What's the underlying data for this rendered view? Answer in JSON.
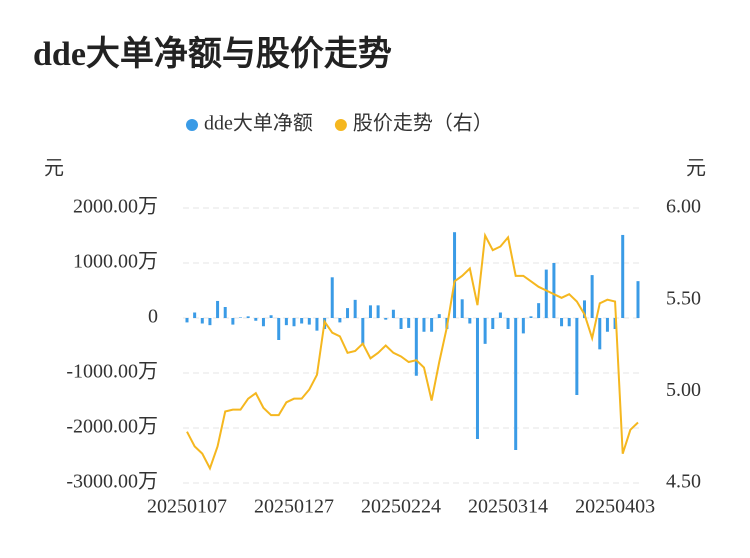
{
  "chart_data": {
    "type": "bar_line",
    "title": "dde大单净额与股价走势",
    "y_label": "元",
    "y2_label": "元",
    "categories": [
      "20250107",
      null,
      null,
      null,
      null,
      null,
      null,
      null,
      null,
      null,
      null,
      null,
      null,
      null,
      "20250127",
      null,
      null,
      null,
      null,
      null,
      null,
      null,
      null,
      null,
      null,
      null,
      null,
      null,
      "20250224",
      null,
      null,
      null,
      null,
      null,
      null,
      null,
      null,
      null,
      null,
      null,
      null,
      null,
      "20250314",
      null,
      null,
      null,
      null,
      null,
      null,
      null,
      null,
      null,
      null,
      null,
      null,
      null,
      "20250403",
      null,
      null,
      null
    ],
    "ylim": [
      -3000,
      2000
    ],
    "yticks": [
      {
        "value": -3000,
        "label": "-3000.00万"
      },
      {
        "value": -2000,
        "label": "-2000.00万"
      },
      {
        "value": -1000,
        "label": "-1000.00万"
      },
      0,
      {
        "value": 1000,
        "label": "1000.00万"
      },
      {
        "value": 2000,
        "label": "2000.00万"
      }
    ],
    "y2lim": [
      4.5,
      6.0
    ],
    "y2ticks": [
      {
        "value": 4.5,
        "label": "4.50"
      },
      {
        "value": 5.0,
        "label": "5.00"
      },
      {
        "value": 5.5,
        "label": "5.50"
      },
      {
        "value": 6.0,
        "label": "6.00"
      }
    ],
    "grid": true,
    "series": [
      {
        "name": "dde大单净额",
        "type": "bar",
        "color": "#3a9be6",
        "values": [
          -80,
          100,
          -100,
          -130,
          310,
          200,
          -120,
          10,
          30,
          -50,
          -150,
          50,
          -400,
          -130,
          -150,
          -100,
          -120,
          -230,
          -200,
          740,
          -80,
          180,
          330,
          -500,
          230,
          230,
          -30,
          150,
          -200,
          -180,
          -1050,
          -250,
          -250,
          70,
          -200,
          1560,
          340,
          -100,
          -2200,
          -470,
          -200,
          100,
          -200,
          -2400,
          -280,
          30,
          270,
          880,
          1000,
          -150,
          -150,
          -1400,
          320,
          780,
          -570,
          -250,
          -200,
          1510,
          0,
          670
        ]
      },
      {
        "name": "股价走势（右）",
        "type": "line",
        "axis": "y2",
        "color": "#f5b71f",
        "values": [
          4.78,
          4.7,
          4.66,
          4.58,
          4.7,
          4.89,
          4.9,
          4.9,
          4.96,
          4.99,
          4.91,
          4.87,
          4.87,
          4.94,
          4.96,
          4.96,
          5.01,
          5.09,
          5.38,
          5.32,
          5.3,
          5.21,
          5.22,
          5.26,
          5.18,
          5.21,
          5.25,
          5.21,
          5.19,
          5.16,
          5.17,
          5.13,
          4.95,
          5.16,
          5.35,
          5.6,
          5.63,
          5.67,
          5.47,
          5.85,
          5.77,
          5.79,
          5.84,
          5.63,
          5.63,
          5.6,
          5.57,
          5.55,
          5.53,
          5.51,
          5.53,
          5.49,
          5.42,
          5.29,
          5.48,
          5.5,
          5.49,
          4.66,
          4.79,
          4.83
        ]
      }
    ]
  }
}
